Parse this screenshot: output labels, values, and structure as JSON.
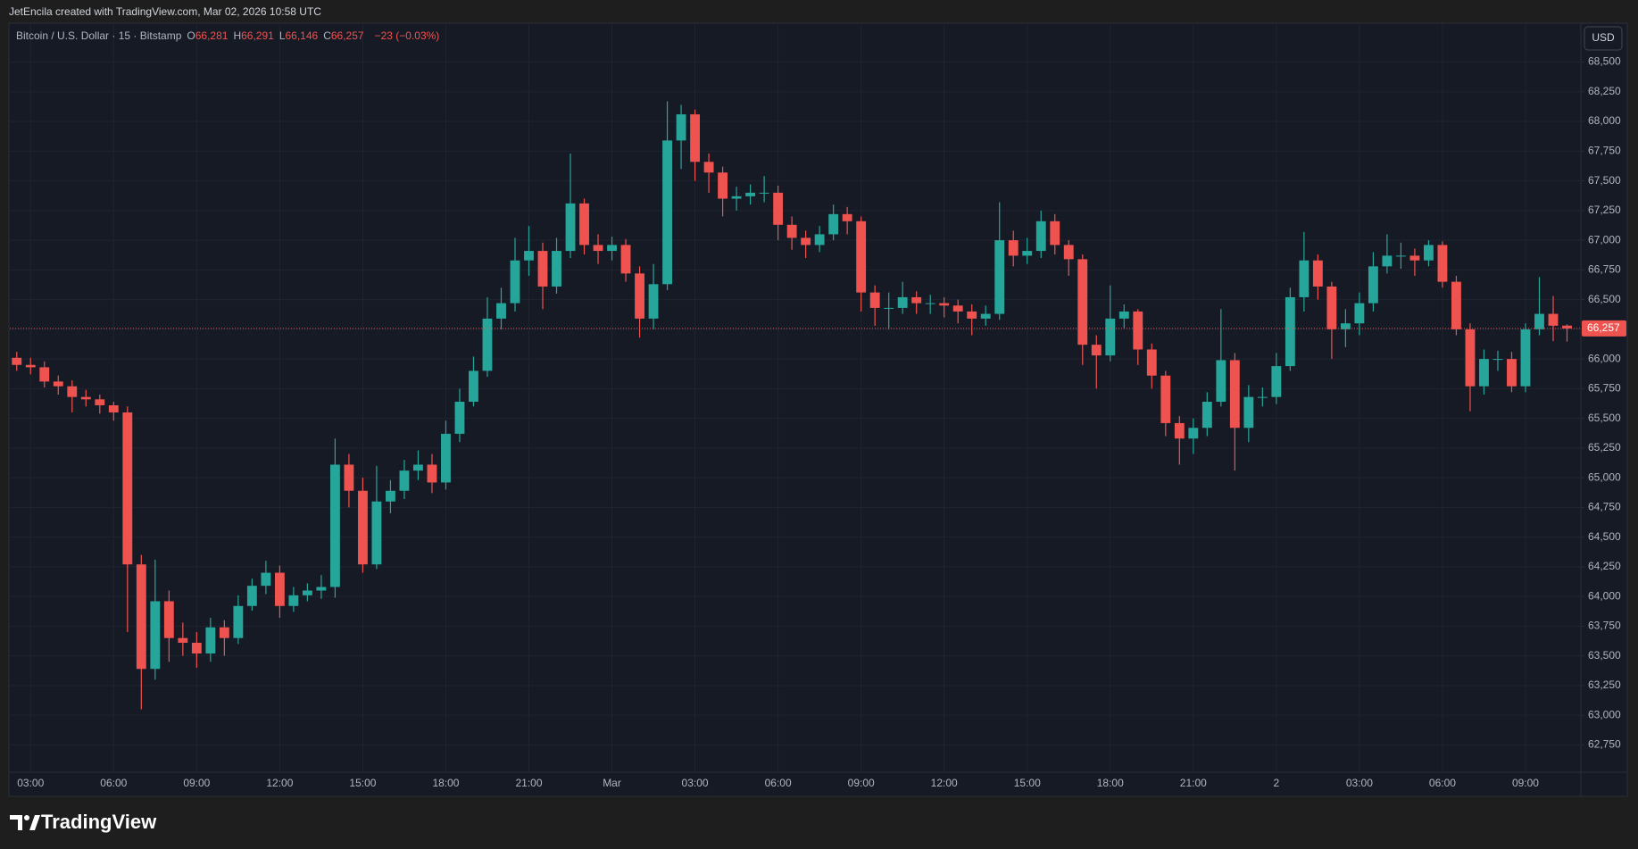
{
  "header": "JetEncila created with TradingView.com, Mar 02, 2026 10:58 UTC",
  "footer_brand": "TradingView",
  "chart_data": {
    "type": "candlestick",
    "title": "Bitcoin / U.S. Dollar · 15 · Bitstamp",
    "ohlc_readout": [
      {
        "label": "O",
        "value": "66,281"
      },
      {
        "label": "H",
        "value": "66,291"
      },
      {
        "label": "L",
        "value": "66,146"
      },
      {
        "label": "C",
        "value": "66,257"
      }
    ],
    "change": "−23 (−0.03%)",
    "currency": "USD",
    "up_color": "#26a69a",
    "down_color": "#ef5350",
    "open": [
      66010,
      65950,
      65930,
      65810,
      65770,
      65680,
      65660,
      65610,
      65550,
      64270,
      63390,
      63960,
      63650,
      63610,
      63520,
      63740,
      63650,
      63920,
      64090,
      64200,
      63920,
      64010,
      64050,
      64080,
      65110,
      64890,
      64270,
      64800,
      64890,
      65060,
      65110,
      64960,
      65370,
      65640,
      65900,
      66340,
      66470,
      66830,
      66910,
      66610,
      66910,
      67310,
      66960,
      66910,
      66960,
      66720,
      66340,
      66630,
      67840,
      68060,
      67660,
      67570,
      67350,
      67370,
      67400,
      67400,
      67130,
      67020,
      66960,
      67050,
      67220,
      67160,
      66560,
      66430,
      66430,
      66520,
      66470,
      66470,
      66450,
      66400,
      66340,
      66380,
      67000,
      66870,
      66910,
      67160,
      66960,
      66840,
      66120,
      66030,
      66340,
      66400,
      66080,
      65860,
      65460,
      65330,
      65420,
      65640,
      65990,
      65420,
      65680,
      65680,
      65940,
      66520,
      66830,
      66610,
      66250,
      66300,
      66470,
      66780,
      66870,
      66870,
      66830,
      66960,
      66650,
      66250,
      65770,
      66000,
      66000,
      65770,
      66250,
      66380,
      66281
    ],
    "high": [
      66060,
      66010,
      65980,
      65860,
      65820,
      65740,
      65700,
      65640,
      65600,
      64350,
      64310,
      64050,
      63780,
      63700,
      63820,
      63800,
      64010,
      64150,
      64300,
      64260,
      64080,
      64110,
      64180,
      65330,
      65200,
      65000,
      65100,
      64980,
      65150,
      65230,
      65200,
      65480,
      65750,
      66020,
      66520,
      66600,
      67020,
      67120,
      66980,
      67020,
      67730,
      67350,
      67050,
      67030,
      67010,
      66780,
      66800,
      68170,
      68140,
      68100,
      67730,
      67620,
      67450,
      67470,
      67540,
      67460,
      67200,
      67080,
      67120,
      67300,
      67280,
      67200,
      66620,
      66560,
      66650,
      66570,
      66540,
      66520,
      66500,
      66460,
      66450,
      67320,
      67080,
      67020,
      67250,
      67220,
      67000,
      66880,
      66200,
      66620,
      66460,
      66420,
      66130,
      65900,
      65520,
      65500,
      65720,
      66420,
      66050,
      65780,
      65760,
      66050,
      66600,
      67070,
      66880,
      66650,
      66420,
      66560,
      66900,
      67050,
      66980,
      66930,
      67000,
      66990,
      66700,
      66300,
      66080,
      66070,
      66060,
      66300,
      66690,
      66530,
      66291
    ],
    "low": [
      65900,
      65870,
      65760,
      65700,
      65550,
      65600,
      65540,
      65480,
      63700,
      63050,
      63300,
      63450,
      63500,
      63400,
      63450,
      63500,
      63600,
      63880,
      64020,
      63820,
      63870,
      63960,
      63980,
      63990,
      64750,
      64200,
      64230,
      64700,
      64820,
      64980,
      64870,
      64900,
      65300,
      65600,
      65850,
      66250,
      66400,
      66700,
      66420,
      66550,
      66850,
      66880,
      66800,
      66830,
      66650,
      66180,
      66250,
      66580,
      67600,
      67500,
      67400,
      67200,
      67250,
      67300,
      67320,
      67000,
      66920,
      66850,
      66900,
      67000,
      67050,
      66400,
      66280,
      66250,
      66380,
      66380,
      66380,
      66350,
      66300,
      66200,
      66280,
      66330,
      66780,
      66800,
      66850,
      66880,
      66700,
      65950,
      65750,
      65980,
      66260,
      65950,
      65750,
      65350,
      65110,
      65200,
      65350,
      65600,
      65060,
      65300,
      65600,
      65620,
      65900,
      66400,
      66500,
      66000,
      66100,
      66200,
      66400,
      66720,
      66760,
      66700,
      66780,
      66600,
      66200,
      65560,
      65700,
      65900,
      65720,
      65720,
      66200,
      66150,
      66146
    ],
    "close": [
      65950,
      65930,
      65810,
      65770,
      65680,
      65660,
      65610,
      65550,
      64270,
      63390,
      63960,
      63650,
      63610,
      63520,
      63740,
      63650,
      63920,
      64090,
      64200,
      63920,
      64010,
      64050,
      64080,
      65110,
      64890,
      64270,
      64800,
      64890,
      65060,
      65110,
      64960,
      65370,
      65640,
      65900,
      66340,
      66470,
      66830,
      66910,
      66610,
      66910,
      67310,
      66960,
      66910,
      66960,
      66720,
      66340,
      66630,
      67840,
      68060,
      67660,
      67570,
      67350,
      67370,
      67400,
      67400,
      67130,
      67020,
      66960,
      67050,
      67220,
      67160,
      66560,
      66430,
      66430,
      66520,
      66470,
      66470,
      66450,
      66400,
      66340,
      66380,
      67000,
      66870,
      66910,
      67160,
      66960,
      66840,
      66120,
      66030,
      66340,
      66400,
      66080,
      65860,
      65460,
      65330,
      65420,
      65640,
      65990,
      65420,
      65680,
      65680,
      65940,
      66520,
      66830,
      66610,
      66250,
      66300,
      66470,
      66780,
      66870,
      66870,
      66830,
      66960,
      66650,
      66250,
      65770,
      66000,
      66000,
      65770,
      66250,
      66380,
      66280,
      66257
    ],
    "xlim": [
      -0.5,
      113
    ],
    "xticks": [
      {
        "value": 1,
        "label": "03:00"
      },
      {
        "value": 7,
        "label": "06:00"
      },
      {
        "value": 13,
        "label": "09:00"
      },
      {
        "value": 19,
        "label": "12:00"
      },
      {
        "value": 25,
        "label": "15:00"
      },
      {
        "value": 31,
        "label": "18:00"
      },
      {
        "value": 37,
        "label": "21:00"
      },
      {
        "value": 43,
        "label": "Mar"
      },
      {
        "value": 49,
        "label": "03:00"
      },
      {
        "value": 55,
        "label": "06:00"
      },
      {
        "value": 61,
        "label": "09:00"
      },
      {
        "value": 67,
        "label": "12:00"
      },
      {
        "value": 73,
        "label": "15:00"
      },
      {
        "value": 79,
        "label": "18:00"
      },
      {
        "value": 85,
        "label": "21:00"
      },
      {
        "value": 91,
        "label": "2"
      },
      {
        "value": 97,
        "label": "03:00"
      },
      {
        "value": 103,
        "label": "06:00"
      },
      {
        "value": 109,
        "label": "09:00"
      }
    ],
    "ylim": [
      62520,
      68820
    ],
    "yticks": [
      {
        "value": 62750,
        "label": "62,750"
      },
      {
        "value": 63000,
        "label": "63,000"
      },
      {
        "value": 63250,
        "label": "63,250"
      },
      {
        "value": 63500,
        "label": "63,500"
      },
      {
        "value": 63750,
        "label": "63,750"
      },
      {
        "value": 64000,
        "label": "64,000"
      },
      {
        "value": 64250,
        "label": "64,250"
      },
      {
        "value": 64500,
        "label": "64,500"
      },
      {
        "value": 64750,
        "label": "64,750"
      },
      {
        "value": 65000,
        "label": "65,000"
      },
      {
        "value": 65250,
        "label": "65,250"
      },
      {
        "value": 65500,
        "label": "65,500"
      },
      {
        "value": 65750,
        "label": "65,750"
      },
      {
        "value": 66000,
        "label": "66,000"
      },
      {
        "value": 66250,
        "label": "66,250"
      },
      {
        "value": 66500,
        "label": "66,500"
      },
      {
        "value": 66750,
        "label": "66,750"
      },
      {
        "value": 67000,
        "label": "67,000"
      },
      {
        "value": 67250,
        "label": "67,250"
      },
      {
        "value": 67500,
        "label": "67,500"
      },
      {
        "value": 67750,
        "label": "67,750"
      },
      {
        "value": 68000,
        "label": "68,000"
      },
      {
        "value": 68250,
        "label": "68,250"
      },
      {
        "value": 68500,
        "label": "68,500"
      }
    ],
    "last_price": {
      "value": 66257,
      "label": "66,257"
    },
    "grid": true
  }
}
